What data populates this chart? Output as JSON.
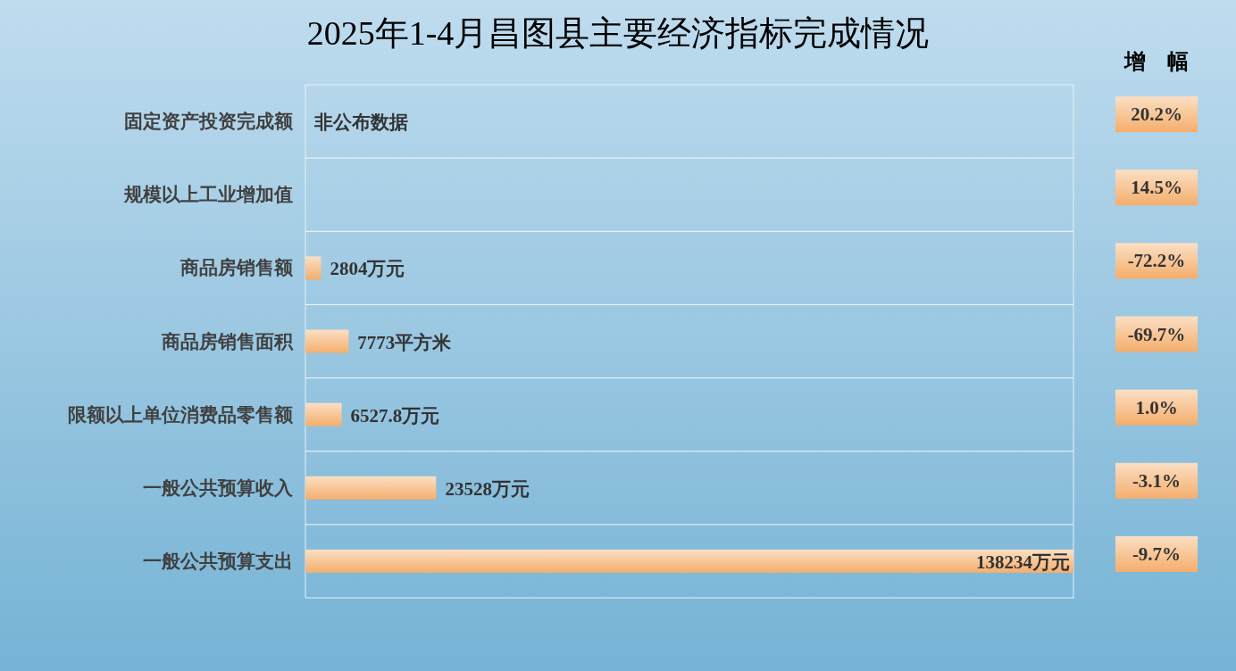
{
  "chart_data": [
    {
      "type": "bar",
      "orientation": "horizontal",
      "title": "2025年1-4月昌图县主要经济指标完成情况",
      "categories": [
        "固定资产投资完成额",
        "规模以上工业增加值",
        "商品房销售额",
        "商品房销售面积",
        "限额以上单位消费品零售额",
        "一般公共预算收入",
        "一般公共预算支出"
      ],
      "values": [
        null,
        null,
        2804,
        7773,
        6527.8,
        23528,
        138234
      ],
      "value_labels": [
        "非公布数据",
        null,
        "2804万元",
        "7773平方米",
        "6527.8万元",
        "23528万元",
        "138234万元"
      ],
      "color": "#f4ae6c",
      "grid": "y"
    },
    {
      "type": "other",
      "title": "增　幅",
      "annotations": [
        "20.2%",
        "14.5%",
        "-72.2%",
        "-69.7%",
        "1.0%",
        "-3.1%",
        "-9.7%"
      ],
      "color": "#f4ae6c"
    }
  ]
}
